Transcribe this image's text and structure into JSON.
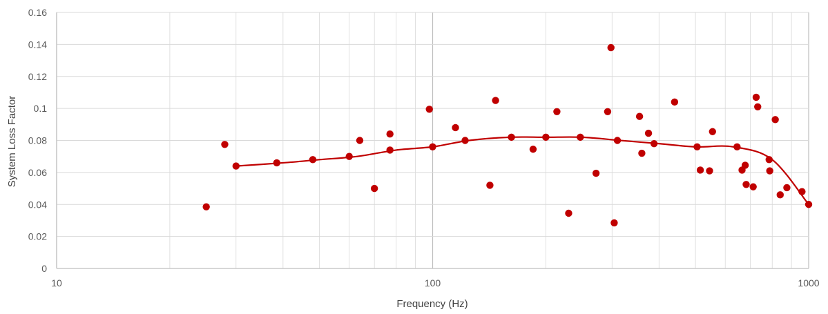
{
  "chart_data": {
    "type": "scatter",
    "title": "",
    "xlabel": "Frequency (Hz)",
    "ylabel": "System Loss Factor",
    "xscale": "log",
    "xlim": [
      10,
      1000
    ],
    "ylim": [
      0,
      0.16
    ],
    "x_ticks": [
      10,
      100,
      1000
    ],
    "x_tick_labels": [
      "10",
      "100",
      "1000"
    ],
    "y_ticks": [
      0,
      0.02,
      0.04,
      0.06,
      0.08,
      0.1,
      0.12,
      0.14,
      0.16
    ],
    "y_tick_labels": [
      "0",
      "0.02",
      "0.04",
      "0.06",
      "0.08",
      "0.1",
      "0.12",
      "0.14",
      "0.16"
    ],
    "grid": true,
    "legend": "none",
    "colors": {
      "series": "#c00000",
      "grid": "#d9d9d9",
      "axis": "#bfbfbf",
      "text": "#595959"
    },
    "series": [
      {
        "type": "scatter",
        "points": [
          [
            25,
            0.0385
          ],
          [
            28,
            0.0775
          ],
          [
            30,
            0.064
          ],
          [
            38.5,
            0.066
          ],
          [
            48,
            0.068
          ],
          [
            60,
            0.07
          ],
          [
            64,
            0.08
          ],
          [
            70,
            0.05
          ],
          [
            77,
            0.074
          ],
          [
            77,
            0.084
          ],
          [
            98,
            0.0995
          ],
          [
            100,
            0.076
          ],
          [
            115,
            0.088
          ],
          [
            122,
            0.08
          ],
          [
            142,
            0.052
          ],
          [
            147,
            0.105
          ],
          [
            162,
            0.082
          ],
          [
            185,
            0.0745
          ],
          [
            200,
            0.082
          ],
          [
            214,
            0.098
          ],
          [
            230,
            0.0345
          ],
          [
            247,
            0.082
          ],
          [
            272,
            0.0595
          ],
          [
            292,
            0.098
          ],
          [
            298,
            0.138
          ],
          [
            304,
            0.0285
          ],
          [
            310,
            0.08
          ],
          [
            355,
            0.095
          ],
          [
            360,
            0.072
          ],
          [
            375,
            0.0845
          ],
          [
            388,
            0.078
          ],
          [
            440,
            0.104
          ],
          [
            505,
            0.076
          ],
          [
            515,
            0.0615
          ],
          [
            545,
            0.061
          ],
          [
            555,
            0.0855
          ],
          [
            645,
            0.076
          ],
          [
            665,
            0.0615
          ],
          [
            678,
            0.0645
          ],
          [
            682,
            0.0525
          ],
          [
            712,
            0.051
          ],
          [
            725,
            0.107
          ],
          [
            732,
            0.101
          ],
          [
            785,
            0.068
          ],
          [
            788,
            0.061
          ],
          [
            815,
            0.093
          ],
          [
            840,
            0.046
          ],
          [
            875,
            0.0505
          ],
          [
            960,
            0.048
          ],
          [
            1000,
            0.04
          ]
        ]
      },
      {
        "type": "line",
        "smooth": true,
        "points": [
          [
            30,
            0.064
          ],
          [
            40,
            0.066
          ],
          [
            50,
            0.068
          ],
          [
            63,
            0.07
          ],
          [
            80,
            0.074
          ],
          [
            100,
            0.076
          ],
          [
            125,
            0.08
          ],
          [
            160,
            0.082
          ],
          [
            200,
            0.082
          ],
          [
            250,
            0.082
          ],
          [
            315,
            0.08
          ],
          [
            400,
            0.078
          ],
          [
            500,
            0.076
          ],
          [
            630,
            0.076
          ],
          [
            800,
            0.068
          ],
          [
            1000,
            0.04
          ]
        ]
      }
    ]
  }
}
